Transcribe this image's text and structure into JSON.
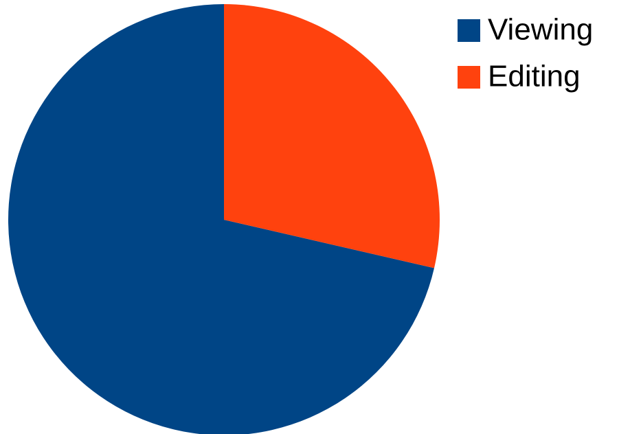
{
  "chart_data": {
    "type": "pie",
    "categories": [
      "Viewing",
      "Editing"
    ],
    "values": [
      71.4,
      28.6
    ],
    "colors": [
      "#004586",
      "#ff420e"
    ],
    "legend": "top-right"
  }
}
